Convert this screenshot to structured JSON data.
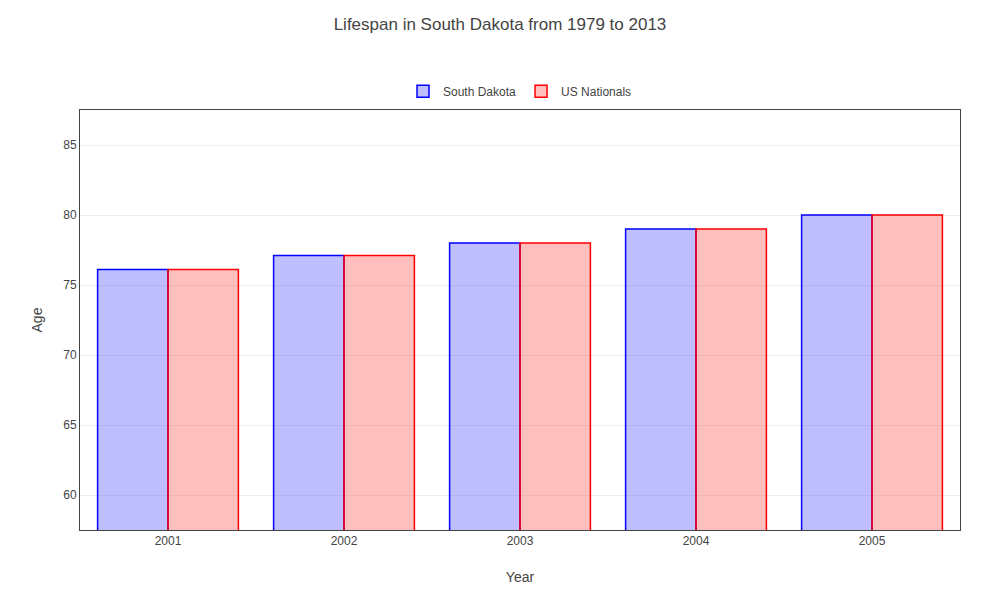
{
  "chart_data": {
    "type": "bar",
    "title": "Lifespan in South Dakota from 1979 to 2013",
    "xlabel": "Year",
    "ylabel": "Age",
    "categories": [
      "2001",
      "2002",
      "2003",
      "2004",
      "2005"
    ],
    "series": [
      {
        "name": "South Dakota",
        "color": "#0000ff",
        "values": [
          76.1,
          77.1,
          78.0,
          79.0,
          80.0
        ]
      },
      {
        "name": "US Nationals",
        "color": "#ff0000",
        "values": [
          76.1,
          77.1,
          78.0,
          79.0,
          80.0
        ]
      }
    ],
    "ylim": [
      57.5,
      87.5
    ],
    "yticks": [
      60,
      65,
      70,
      75,
      80,
      85
    ],
    "grid": true,
    "legend": "top"
  }
}
